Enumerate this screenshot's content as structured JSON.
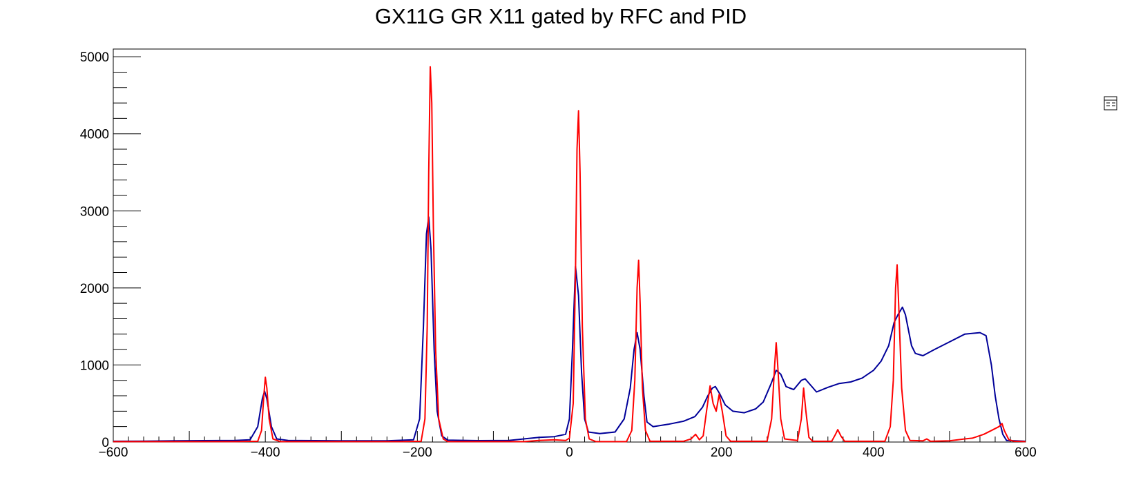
{
  "chart_data": {
    "type": "line",
    "title": "GX11G      GR X11 gated by RFC and PID",
    "xlabel": "",
    "ylabel": "",
    "xlim": [
      -600,
      600
    ],
    "ylim": [
      0,
      5100
    ],
    "x_ticks": [
      -600,
      -400,
      -200,
      0,
      200,
      400,
      600
    ],
    "y_ticks": [
      0,
      1000,
      2000,
      3000,
      4000,
      5000
    ],
    "grid": false,
    "legend": "top-right icon",
    "series": [
      {
        "color": "#000099",
        "points": [
          [
            -600,
            10
          ],
          [
            -560,
            12
          ],
          [
            -520,
            15
          ],
          [
            -480,
            18
          ],
          [
            -440,
            20
          ],
          [
            -420,
            30
          ],
          [
            -410,
            200
          ],
          [
            -404,
            560
          ],
          [
            -401,
            660
          ],
          [
            -398,
            560
          ],
          [
            -392,
            200
          ],
          [
            -385,
            40
          ],
          [
            -370,
            20
          ],
          [
            -300,
            15
          ],
          [
            -240,
            15
          ],
          [
            -205,
            30
          ],
          [
            -197,
            300
          ],
          [
            -192,
            1500
          ],
          [
            -188,
            2700
          ],
          [
            -185,
            2920
          ],
          [
            -182,
            2500
          ],
          [
            -178,
            1200
          ],
          [
            -174,
            400
          ],
          [
            -168,
            80
          ],
          [
            -160,
            25
          ],
          [
            -120,
            18
          ],
          [
            -80,
            20
          ],
          [
            -60,
            40
          ],
          [
            -40,
            60
          ],
          [
            -20,
            70
          ],
          [
            -5,
            100
          ],
          [
            0,
            300
          ],
          [
            4,
            1200
          ],
          [
            8,
            2280
          ],
          [
            12,
            1900
          ],
          [
            16,
            900
          ],
          [
            20,
            300
          ],
          [
            25,
            130
          ],
          [
            40,
            110
          ],
          [
            60,
            130
          ],
          [
            72,
            300
          ],
          [
            80,
            700
          ],
          [
            85,
            1200
          ],
          [
            89,
            1420
          ],
          [
            93,
            1200
          ],
          [
            98,
            600
          ],
          [
            102,
            260
          ],
          [
            110,
            200
          ],
          [
            130,
            230
          ],
          [
            150,
            270
          ],
          [
            165,
            330
          ],
          [
            175,
            450
          ],
          [
            182,
            600
          ],
          [
            188,
            700
          ],
          [
            192,
            720
          ],
          [
            198,
            620
          ],
          [
            205,
            480
          ],
          [
            215,
            400
          ],
          [
            230,
            380
          ],
          [
            245,
            430
          ],
          [
            255,
            520
          ],
          [
            265,
            750
          ],
          [
            272,
            930
          ],
          [
            278,
            880
          ],
          [
            285,
            720
          ],
          [
            295,
            680
          ],
          [
            305,
            800
          ],
          [
            310,
            820
          ],
          [
            318,
            730
          ],
          [
            325,
            650
          ],
          [
            340,
            710
          ],
          [
            355,
            760
          ],
          [
            370,
            780
          ],
          [
            385,
            830
          ],
          [
            400,
            930
          ],
          [
            410,
            1050
          ],
          [
            420,
            1250
          ],
          [
            427,
            1550
          ],
          [
            432,
            1650
          ],
          [
            438,
            1750
          ],
          [
            442,
            1650
          ],
          [
            450,
            1250
          ],
          [
            455,
            1150
          ],
          [
            465,
            1120
          ],
          [
            480,
            1200
          ],
          [
            500,
            1300
          ],
          [
            520,
            1400
          ],
          [
            540,
            1420
          ],
          [
            548,
            1380
          ],
          [
            555,
            1000
          ],
          [
            560,
            600
          ],
          [
            565,
            300
          ],
          [
            570,
            100
          ],
          [
            575,
            20
          ],
          [
            600,
            10
          ]
        ]
      },
      {
        "color": "#ff0000",
        "points": [
          [
            -600,
            5
          ],
          [
            -440,
            5
          ],
          [
            -410,
            10
          ],
          [
            -405,
            150
          ],
          [
            -402,
            600
          ],
          [
            -400,
            840
          ],
          [
            -398,
            700
          ],
          [
            -395,
            300
          ],
          [
            -390,
            40
          ],
          [
            -380,
            5
          ],
          [
            -220,
            5
          ],
          [
            -195,
            10
          ],
          [
            -190,
            300
          ],
          [
            -187,
            1500
          ],
          [
            -185,
            3500
          ],
          [
            -183,
            4870
          ],
          [
            -181,
            4400
          ],
          [
            -179,
            2800
          ],
          [
            -176,
            1200
          ],
          [
            -172,
            300
          ],
          [
            -166,
            40
          ],
          [
            -160,
            5
          ],
          [
            -60,
            5
          ],
          [
            -40,
            20
          ],
          [
            -20,
            30
          ],
          [
            -5,
            20
          ],
          [
            0,
            50
          ],
          [
            5,
            500
          ],
          [
            8,
            2200
          ],
          [
            10,
            3800
          ],
          [
            12,
            4300
          ],
          [
            14,
            3500
          ],
          [
            17,
            1500
          ],
          [
            21,
            300
          ],
          [
            26,
            40
          ],
          [
            35,
            5
          ],
          [
            75,
            5
          ],
          [
            82,
            150
          ],
          [
            86,
            800
          ],
          [
            89,
            2000
          ],
          [
            91,
            2360
          ],
          [
            93,
            1800
          ],
          [
            96,
            700
          ],
          [
            100,
            150
          ],
          [
            106,
            10
          ],
          [
            150,
            10
          ],
          [
            160,
            40
          ],
          [
            166,
            100
          ],
          [
            171,
            30
          ],
          [
            176,
            80
          ],
          [
            181,
            450
          ],
          [
            185,
            730
          ],
          [
            189,
            500
          ],
          [
            193,
            400
          ],
          [
            197,
            620
          ],
          [
            201,
            400
          ],
          [
            206,
            80
          ],
          [
            212,
            10
          ],
          [
            260,
            10
          ],
          [
            266,
            300
          ],
          [
            270,
            1000
          ],
          [
            272,
            1290
          ],
          [
            274,
            1000
          ],
          [
            278,
            300
          ],
          [
            283,
            40
          ],
          [
            300,
            20
          ],
          [
            305,
            300
          ],
          [
            308,
            700
          ],
          [
            311,
            400
          ],
          [
            315,
            60
          ],
          [
            320,
            10
          ],
          [
            345,
            10
          ],
          [
            350,
            100
          ],
          [
            353,
            160
          ],
          [
            357,
            80
          ],
          [
            362,
            10
          ],
          [
            415,
            10
          ],
          [
            422,
            200
          ],
          [
            426,
            800
          ],
          [
            429,
            2000
          ],
          [
            431,
            2300
          ],
          [
            433,
            1800
          ],
          [
            437,
            700
          ],
          [
            442,
            150
          ],
          [
            448,
            20
          ],
          [
            465,
            15
          ],
          [
            470,
            40
          ],
          [
            475,
            10
          ],
          [
            500,
            15
          ],
          [
            520,
            40
          ],
          [
            530,
            50
          ],
          [
            545,
            100
          ],
          [
            555,
            150
          ],
          [
            565,
            200
          ],
          [
            569,
            240
          ],
          [
            572,
            150
          ],
          [
            578,
            30
          ],
          [
            585,
            10
          ],
          [
            600,
            5
          ]
        ]
      }
    ]
  }
}
